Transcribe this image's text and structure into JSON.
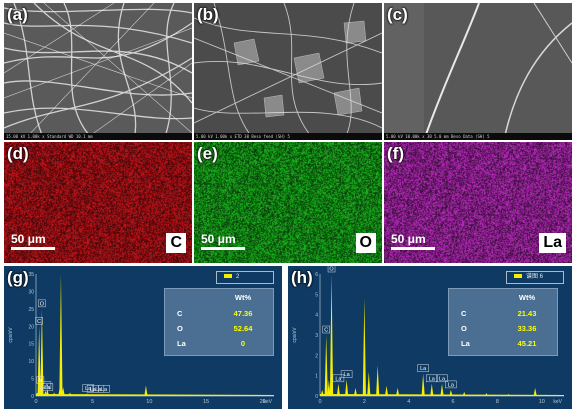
{
  "panels": {
    "a": {
      "label": "(a)",
      "info": "15.00 kV  1.00k x  Standard  WD 10.1 mm"
    },
    "b": {
      "label": "(b)",
      "info": "5.00 kV  1.00k x  ETD  30  Beso feed (SH) 5"
    },
    "c": {
      "label": "(c)",
      "info": "5.00 kV  10.00k x  30  5.0 mm  Beso Data (SH) 5"
    },
    "d": {
      "label": "(d)",
      "scale": "50 μm",
      "element": "C",
      "color": "#c0141a"
    },
    "e": {
      "label": "(e)",
      "scale": "50 μm",
      "element": "O",
      "color": "#19b01c"
    },
    "f": {
      "label": "(f)",
      "scale": "50 μm",
      "element": "La",
      "color": "#b42ab8"
    }
  },
  "eds_g": {
    "label": "(g)",
    "legend": "2",
    "ylabel": "cps/eV",
    "xlabel": "keV",
    "yticks": [
      "0",
      "5",
      "10",
      "15",
      "20",
      "25",
      "30",
      "35"
    ],
    "xticks": [
      "0",
      "5",
      "10",
      "15",
      "20"
    ],
    "peak_labels": [
      "C",
      "O",
      "N",
      "La",
      "La",
      "La",
      "La",
      "La",
      "La"
    ],
    "table": {
      "header": "Wt%",
      "rows": [
        {
          "element": "C",
          "value": "47.36"
        },
        {
          "element": "O",
          "value": "52.64"
        },
        {
          "element": "La",
          "value": "0"
        }
      ]
    }
  },
  "eds_h": {
    "label": "(h)",
    "legend": "谱图 6",
    "ylabel": "cps/eV",
    "xlabel": "keV",
    "yticks": [
      "0",
      "1",
      "2",
      "3",
      "4",
      "5",
      "6"
    ],
    "xticks": [
      "0",
      "2",
      "4",
      "6",
      "8",
      "10"
    ],
    "peak_labels": [
      "O",
      "C",
      "La",
      "La",
      "La",
      "La",
      "La",
      "La"
    ],
    "table": {
      "header": "Wt%",
      "rows": [
        {
          "element": "C",
          "value": "21.43"
        },
        {
          "element": "O",
          "value": "33.36"
        },
        {
          "element": "La",
          "value": "45.21"
        }
      ]
    }
  },
  "chart_data": [
    {
      "type": "line",
      "title": "",
      "xlabel": "keV",
      "ylabel": "cps/eV",
      "xlim": [
        0,
        21
      ],
      "ylim": [
        0,
        35
      ],
      "series": [
        {
          "x": [
            0.1,
            0.28,
            0.39,
            0.52,
            0.83,
            1.0,
            1.6,
            2.1,
            2.2,
            2.4,
            3.0,
            4.5,
            6.0,
            8.0,
            9.7,
            11.5,
            14.0,
            17.0,
            20.0
          ],
          "y": [
            1.0,
            20.0,
            3.0,
            25.0,
            1.5,
            2.0,
            1.0,
            2.5,
            35.0,
            2.5,
            1.0,
            0.7,
            0.5,
            0.4,
            3.0,
            0.3,
            0.2,
            0.15,
            0.1
          ]
        }
      ]
    },
    {
      "type": "line",
      "title": "",
      "xlabel": "keV",
      "ylabel": "cps/eV",
      "xlim": [
        0,
        11
      ],
      "ylim": [
        0,
        6
      ],
      "series": [
        {
          "x": [
            0.1,
            0.28,
            0.4,
            0.52,
            0.83,
            1.2,
            1.6,
            2.0,
            2.2,
            2.6,
            3.0,
            3.5,
            4.65,
            5.04,
            5.5,
            5.9,
            6.5,
            7.5,
            8.5,
            9.7,
            10.5
          ],
          "y": [
            0.3,
            3.0,
            0.8,
            6.0,
            0.6,
            0.8,
            0.4,
            4.8,
            1.2,
            1.5,
            0.5,
            0.4,
            1.1,
            0.6,
            0.6,
            0.3,
            0.2,
            0.15,
            0.1,
            0.4,
            0.05
          ]
        }
      ]
    }
  ]
}
